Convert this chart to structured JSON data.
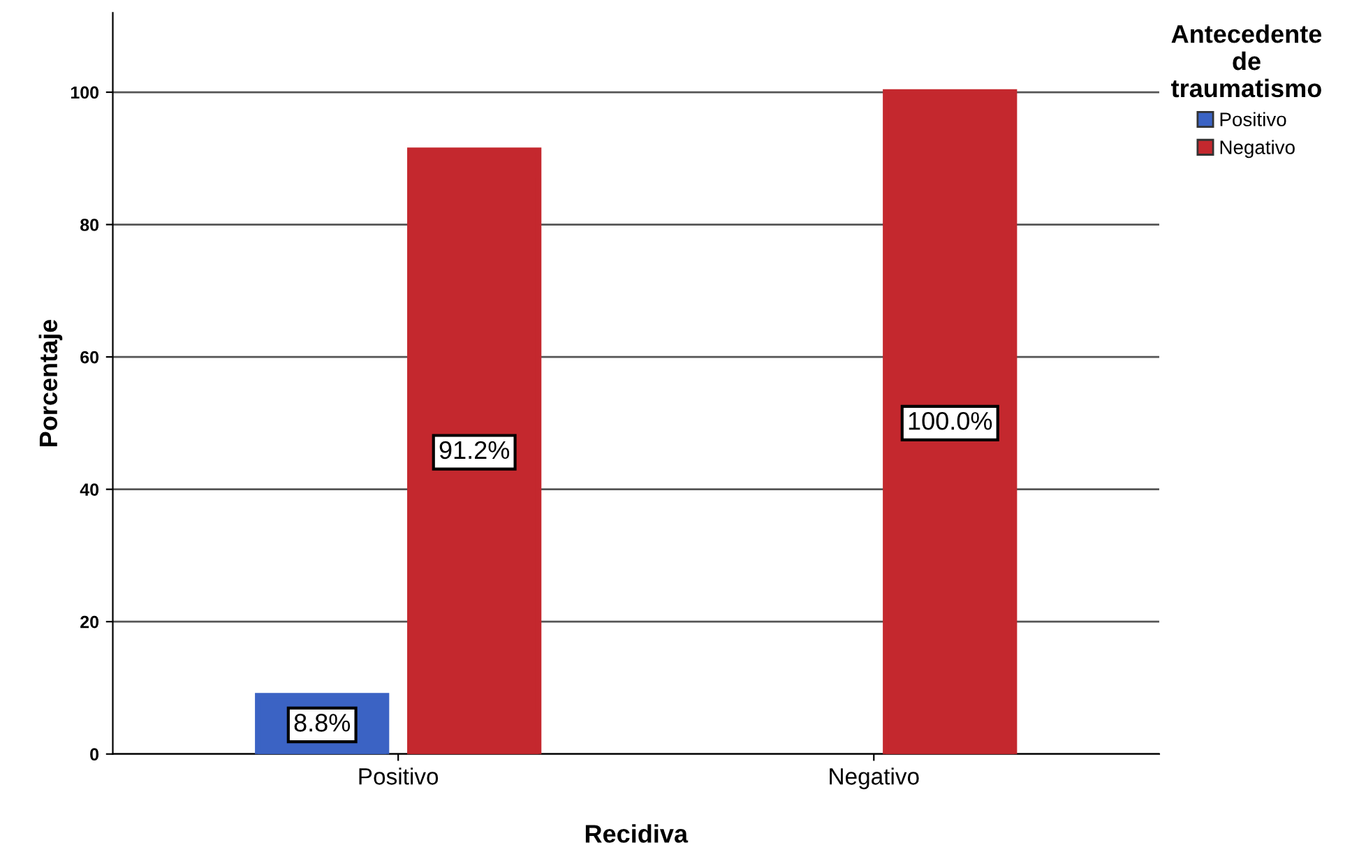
{
  "chart_data": {
    "type": "bar",
    "xlabel": "Recidiva",
    "ylabel": "Porcentaje",
    "legend_title": "Antecedente\nde\ntraumatismo",
    "categories": [
      "Positivo",
      "Negativo"
    ],
    "series": [
      {
        "name": "Positivo",
        "color": "#3b63c4",
        "values": [
          8.8,
          null
        ],
        "value_labels": [
          "8.8%",
          null
        ]
      },
      {
        "name": "Negativo",
        "color": "#c4282e",
        "values": [
          91.2,
          100.0
        ],
        "value_labels": [
          "91.2%",
          "100.0%"
        ]
      }
    ],
    "ylim": [
      0,
      112
    ],
    "yticks": [
      0,
      20,
      40,
      60,
      80,
      100
    ],
    "grid": "y",
    "legend": "top right"
  }
}
